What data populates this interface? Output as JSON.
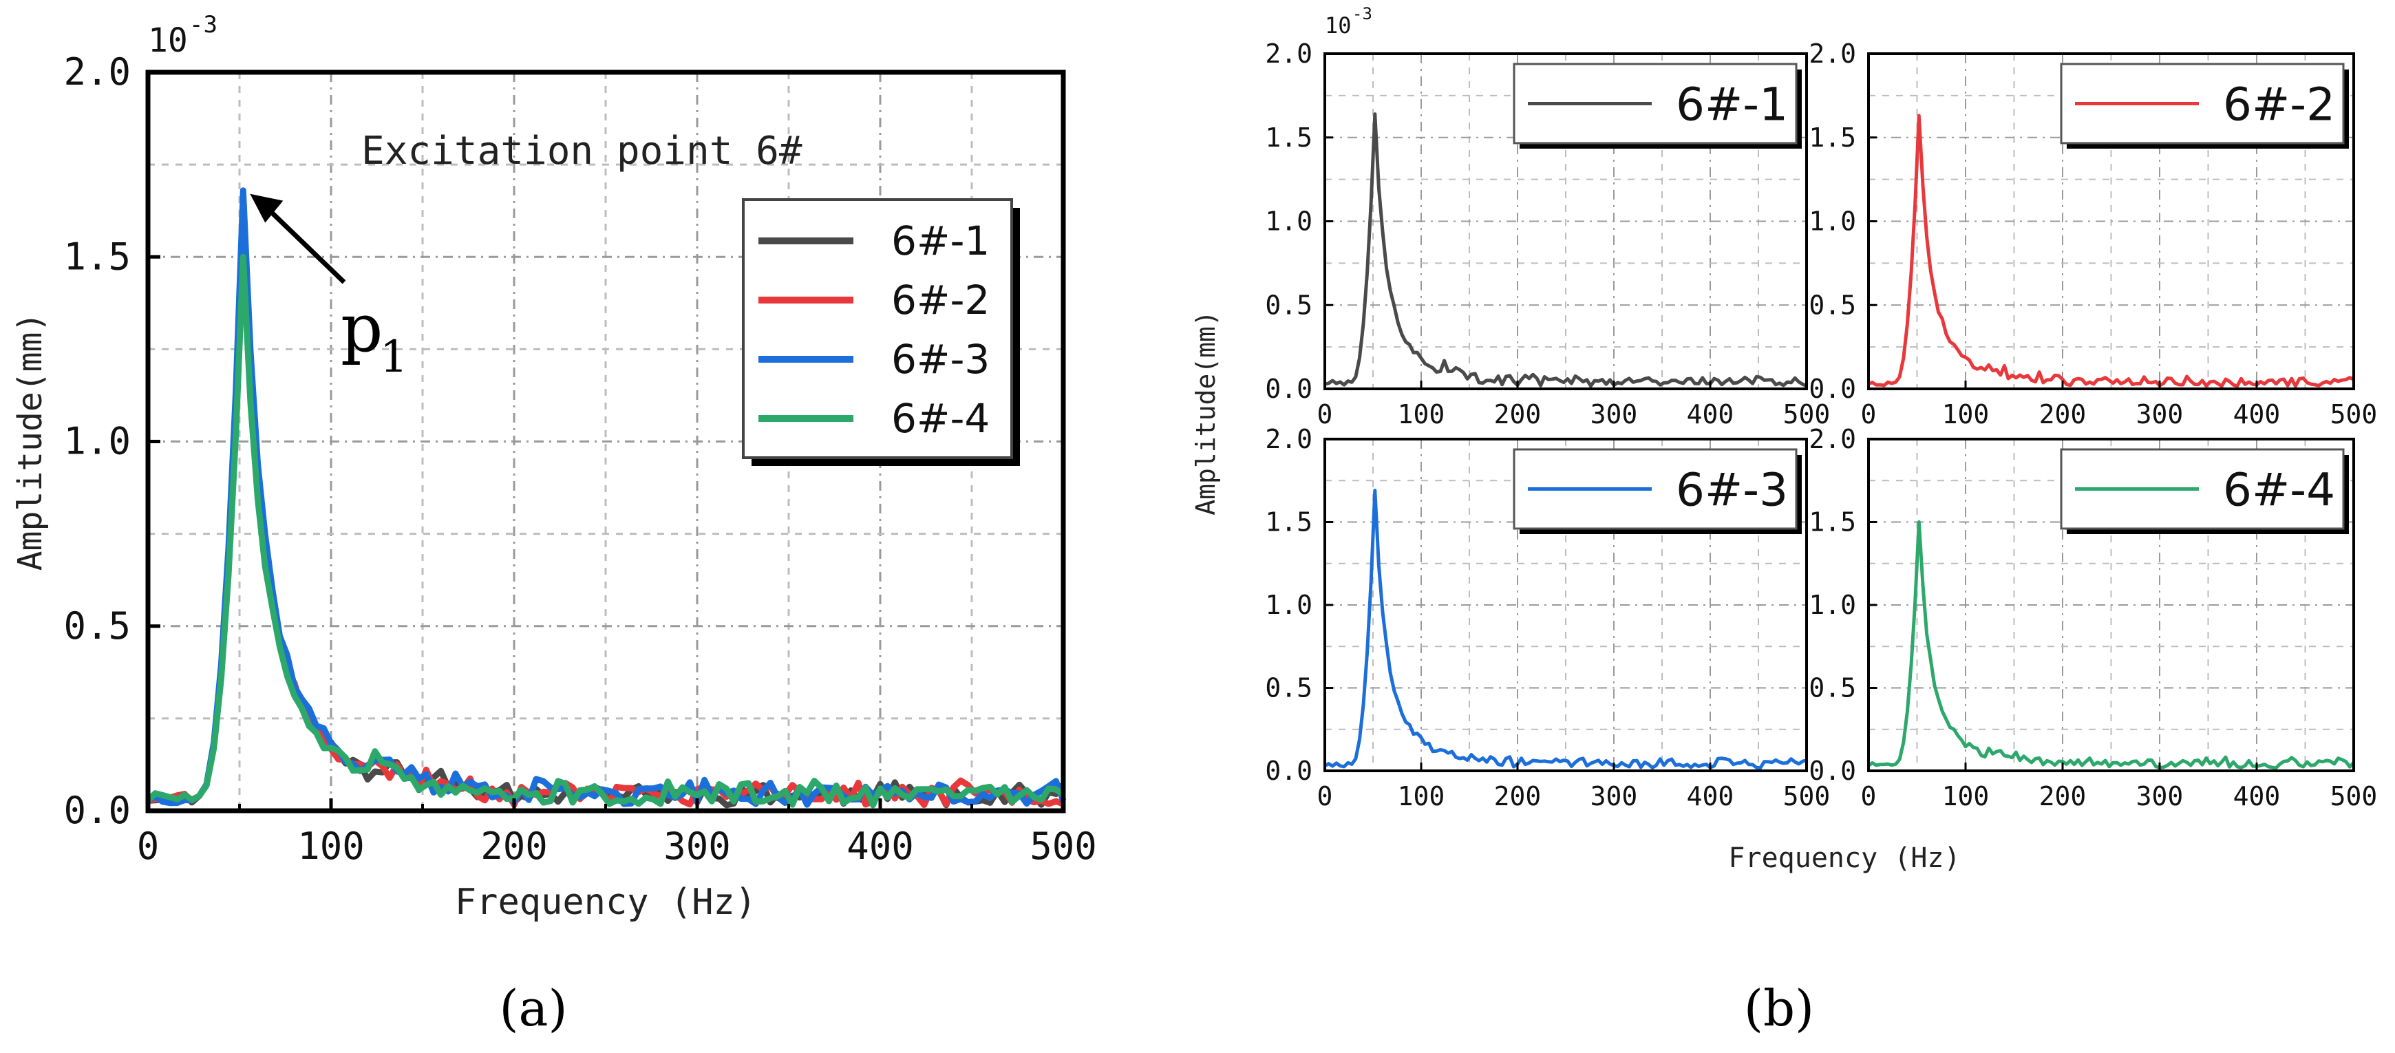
{
  "figure": {
    "panel_a_label": "(a)",
    "panel_b_label": "(b)"
  },
  "chart_data": [
    {
      "id": "a",
      "type": "line",
      "title": "",
      "annotation": "Excitation point 6#",
      "peak_label": "p",
      "peak_label_subscript": "1",
      "xlabel": "Frequency (Hz)",
      "ylabel": "Amplitude(mm)",
      "y_exponent": "10",
      "y_exponent_power": "-3",
      "xlim": [
        0,
        500
      ],
      "ylim": [
        0,
        2.0
      ],
      "xticks": [
        0,
        100,
        200,
        300,
        400,
        500
      ],
      "yticks": [
        "0.0",
        "0.5",
        "1.0",
        "1.5",
        "2.0"
      ],
      "peak_point": [
        52,
        1.68
      ],
      "grid": true,
      "legend_position": "top-right",
      "series": [
        {
          "name": "6#-1",
          "color": "#4a4a4a"
        },
        {
          "name": "6#-2",
          "color": "#e8383b"
        },
        {
          "name": "6#-3",
          "color": "#1c6fdb"
        },
        {
          "name": "6#-4",
          "color": "#2da86b"
        }
      ]
    },
    {
      "id": "b",
      "type": "line",
      "xlabel": "Frequency (Hz)",
      "ylabel": "Amplitude(mm)",
      "y_exponent": "10",
      "y_exponent_power": "-3",
      "xlim": [
        0,
        500
      ],
      "ylim": [
        0,
        2.0
      ],
      "xticks": [
        0,
        100,
        200,
        300,
        400,
        500
      ],
      "yticks": [
        "0.0",
        "0.5",
        "1.0",
        "1.5",
        "2.0"
      ],
      "grid": true,
      "subplots": [
        {
          "name": "6#-1",
          "color": "#4a4a4a",
          "peak": 1.64,
          "legend_position": "top-right"
        },
        {
          "name": "6#-2",
          "color": "#e8383b",
          "peak": 1.63,
          "legend_position": "top-right"
        },
        {
          "name": "6#-3",
          "color": "#1c6fdb",
          "peak": 1.69,
          "legend_position": "top-right"
        },
        {
          "name": "6#-4",
          "color": "#2da86b",
          "peak": 1.5,
          "legend_position": "top-right"
        }
      ]
    }
  ]
}
